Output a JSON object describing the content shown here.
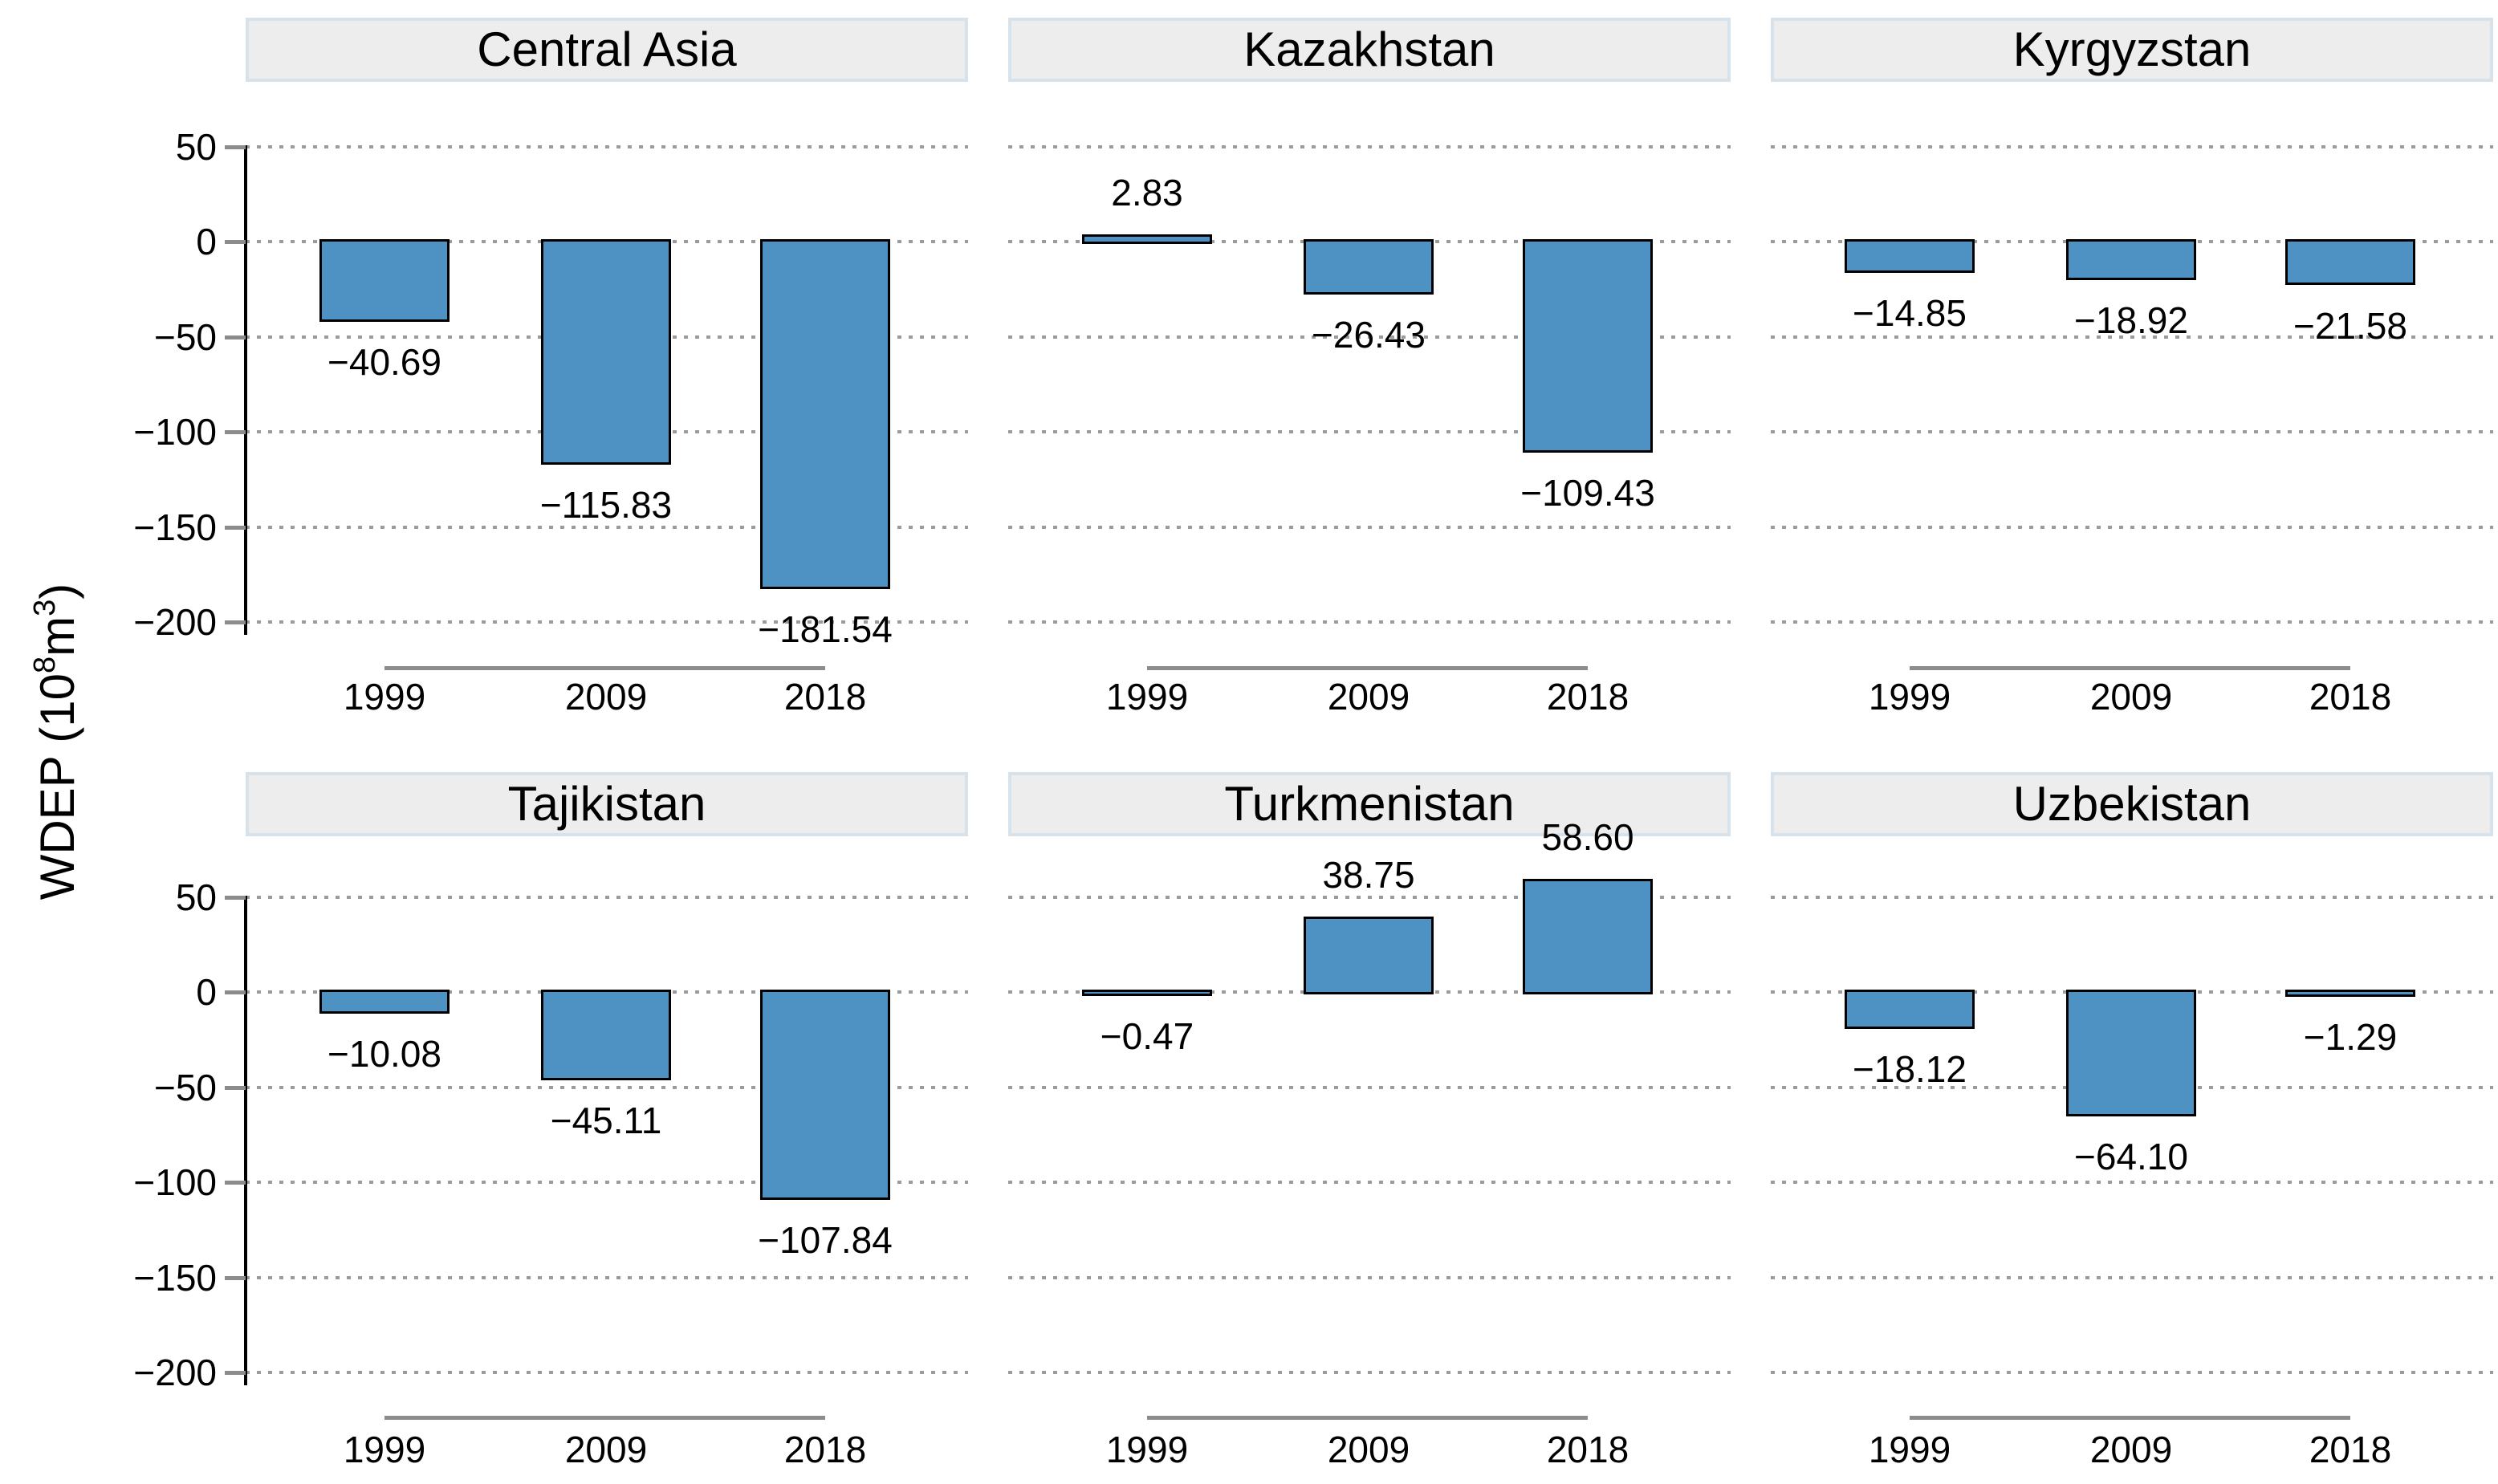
{
  "figure": {
    "ylabel": {
      "p1": "WDEP (10",
      "s1": "8",
      "p2": "m",
      "s2": "3",
      "p3": ")"
    },
    "ylabel_text": "WDEP (10⁸m³)"
  },
  "chart_data": {
    "type": "bar",
    "layout": "2 rows x 3 columns small multiples",
    "categories": [
      "1999",
      "2009",
      "2018"
    ],
    "ylabel": "WDEP (10⁸m³)",
    "ylim": [
      -200,
      50
    ],
    "yticks": [
      50,
      0,
      -50,
      -100,
      -150,
      -200
    ],
    "ytick_labels": [
      "50",
      "0",
      "−50",
      "−100",
      "−150",
      "−200"
    ],
    "grid": "horizontal dotted gridlines at every tick",
    "legend": "none",
    "panels": [
      {
        "title": "Central Asia",
        "values": [
          -40.69,
          -115.83,
          -181.54
        ],
        "labels": [
          "−40.69",
          "−115.83",
          "−181.54"
        ]
      },
      {
        "title": "Kazakhstan",
        "values": [
          2.83,
          -26.43,
          -109.43
        ],
        "labels": [
          "2.83",
          "−26.43",
          "−109.43"
        ]
      },
      {
        "title": "Kyrgyzstan",
        "values": [
          -14.85,
          -18.92,
          -21.58
        ],
        "labels": [
          "−14.85",
          "−18.92",
          "−21.58"
        ]
      },
      {
        "title": "Tajikistan",
        "values": [
          -10.08,
          -45.11,
          -107.84
        ],
        "labels": [
          "−10.08",
          "−45.11",
          "−107.84"
        ]
      },
      {
        "title": "Turkmenistan",
        "values": [
          -0.47,
          38.75,
          58.6
        ],
        "labels": [
          "−0.47",
          "38.75",
          "58.60"
        ]
      },
      {
        "title": "Uzbekistan",
        "values": [
          -18.12,
          -64.1,
          -1.29
        ],
        "labels": [
          "−18.12",
          "−64.10",
          "−1.29"
        ]
      }
    ],
    "style": {
      "bar_fill": "#4e91c3",
      "bar_border": "#000000",
      "header_fill": "#ededed",
      "header_border": "#d7e2ea",
      "grid_dot_color": "#9b9b9b",
      "axis_gray": "#8c8c8c",
      "spine_color": "#000000",
      "background": "#ffffff"
    }
  }
}
